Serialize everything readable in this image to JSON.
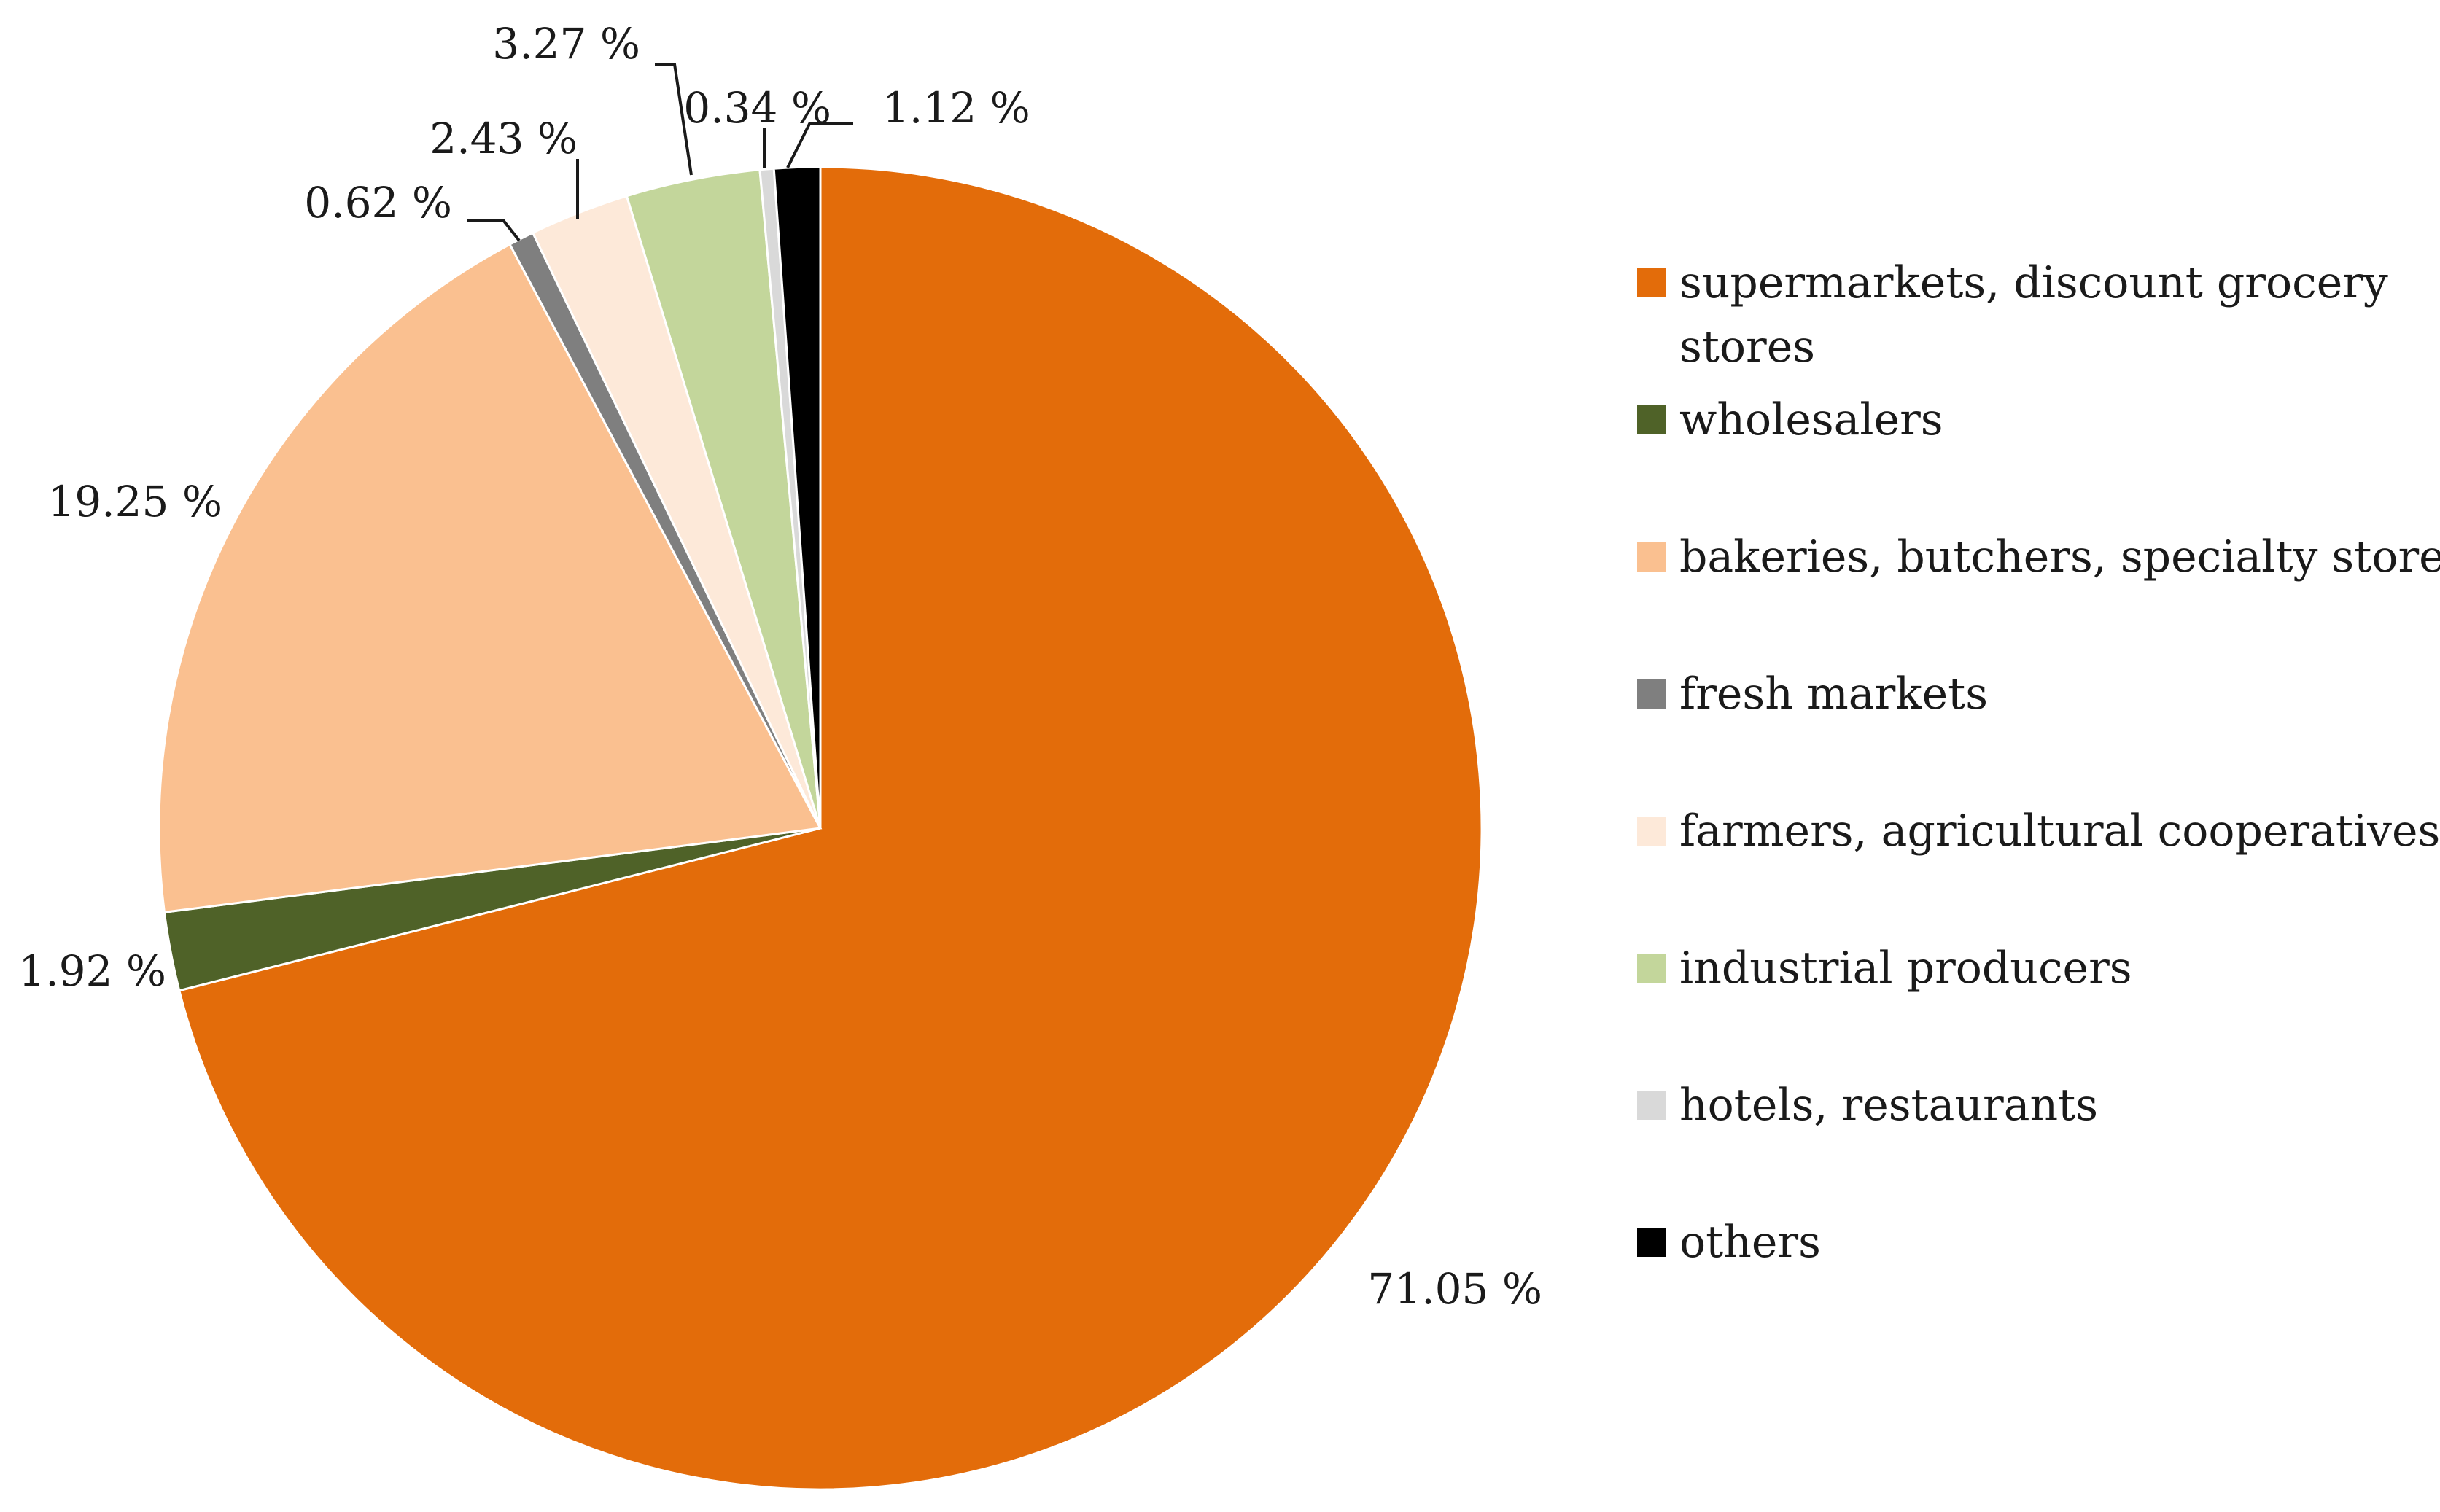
{
  "chart_data": {
    "type": "pie",
    "title": "",
    "start_angle": "12 o'clock",
    "direction": "clockwise",
    "legend_position": "right",
    "series": [
      {
        "name": "supermarkets, discount grocery stores",
        "value": 71.05,
        "label": "71.05 %",
        "color": "#E36C0A"
      },
      {
        "name": "wholesalers",
        "value": 1.92,
        "label": "1.92 %",
        "color": "#4F6228"
      },
      {
        "name": "bakeries, butchers, specialty stores",
        "value": 19.25,
        "label": "19.25 %",
        "color": "#FAC090"
      },
      {
        "name": "fresh markets",
        "value": 0.62,
        "label": "0.62 %",
        "color": "#7F7F7F"
      },
      {
        "name": "farmers, agricultural cooperatives",
        "value": 2.43,
        "label": "2.43 %",
        "color": "#FDE9D9"
      },
      {
        "name": "industrial producers",
        "value": 3.27,
        "label": "3.27 %",
        "color": "#C3D69B"
      },
      {
        "name": "hotels, restaurants",
        "value": 0.34,
        "label": "0.34 %",
        "color": "#D9D9D9"
      },
      {
        "name": "others",
        "value": 1.12,
        "label": "1.12 %",
        "color": "#000000"
      }
    ]
  }
}
